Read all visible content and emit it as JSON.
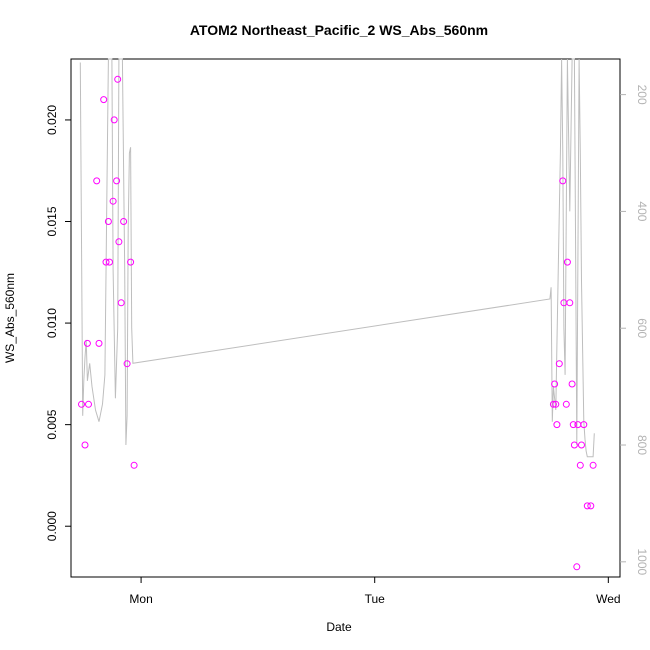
{
  "chart_data": {
    "type": "scatter",
    "title": "ATOM2 Northeast_Pacific_2 WS_Abs_560nm",
    "xlabel": "Date",
    "ylabel": "WS_Abs_560nm",
    "x_ticks": [
      "Mon",
      "Tue",
      "Wed"
    ],
    "x_tick_positions_days": [
      0,
      1,
      2
    ],
    "xlim_days": [
      -0.3,
      2.05
    ],
    "ylim": [
      -0.0025,
      0.023
    ],
    "y_ticks": [
      0.0,
      0.005,
      0.01,
      0.015,
      0.02
    ],
    "y_tick_labels": [
      "0.000",
      "0.005",
      "0.010",
      "0.015",
      "0.020"
    ],
    "right_axis": {
      "ticks": [
        200,
        400,
        600,
        800,
        1000
      ],
      "tick_labels": [
        "200",
        "400",
        "600",
        "800",
        "1000"
      ],
      "lim": [
        1026,
        139
      ],
      "reversed": true
    },
    "grid": false,
    "colors": {
      "points": "#ff00ff",
      "line": "#bebebe",
      "axes": "#000000",
      "right_axis": "#b3b3b3"
    },
    "series": [
      {
        "type": "scatter",
        "points": [
          [
            -0.255,
            0.006
          ],
          [
            -0.24,
            0.004
          ],
          [
            -0.23,
            0.009
          ],
          [
            -0.225,
            0.006
          ],
          [
            -0.19,
            0.017
          ],
          [
            -0.18,
            0.009
          ],
          [
            -0.16,
            0.021
          ],
          [
            -0.15,
            0.013
          ],
          [
            -0.14,
            0.015
          ],
          [
            -0.135,
            0.013
          ],
          [
            -0.12,
            0.016
          ],
          [
            -0.115,
            0.02
          ],
          [
            -0.105,
            0.017
          ],
          [
            -0.1,
            0.022
          ],
          [
            -0.095,
            0.014
          ],
          [
            -0.085,
            0.011
          ],
          [
            -0.075,
            0.015
          ],
          [
            -0.06,
            0.008
          ],
          [
            -0.045,
            0.013
          ],
          [
            -0.03,
            0.003
          ],
          [
            1.765,
            0.006
          ],
          [
            1.77,
            0.007
          ],
          [
            1.775,
            0.006
          ],
          [
            1.78,
            0.005
          ],
          [
            1.79,
            0.008
          ],
          [
            1.805,
            0.017
          ],
          [
            1.81,
            0.011
          ],
          [
            1.82,
            0.006
          ],
          [
            1.825,
            0.013
          ],
          [
            1.835,
            0.011
          ],
          [
            1.845,
            0.007
          ],
          [
            1.85,
            0.005
          ],
          [
            1.855,
            0.004
          ],
          [
            1.865,
            -0.002
          ],
          [
            1.87,
            0.005
          ],
          [
            1.88,
            0.003
          ],
          [
            1.885,
            0.004
          ],
          [
            1.895,
            0.005
          ],
          [
            1.91,
            0.001
          ],
          [
            1.925,
            0.001
          ],
          [
            1.935,
            0.003
          ]
        ]
      },
      {
        "type": "line",
        "points": [
          [
            -0.26,
            145
          ],
          [
            -0.255,
            450
          ],
          [
            -0.25,
            750
          ],
          [
            -0.245,
            690
          ],
          [
            -0.24,
            650
          ],
          [
            -0.235,
            620
          ],
          [
            -0.23,
            690
          ],
          [
            -0.22,
            660
          ],
          [
            -0.21,
            700
          ],
          [
            -0.195,
            740
          ],
          [
            -0.18,
            760
          ],
          [
            -0.165,
            730
          ],
          [
            -0.155,
            680
          ],
          [
            -0.145,
            320
          ],
          [
            -0.14,
            139
          ],
          [
            -0.125,
            139
          ],
          [
            -0.12,
            500
          ],
          [
            -0.11,
            720
          ],
          [
            -0.1,
            600
          ],
          [
            -0.095,
            139
          ],
          [
            -0.08,
            139
          ],
          [
            -0.07,
            500
          ],
          [
            -0.065,
            800
          ],
          [
            -0.06,
            750
          ],
          [
            -0.055,
            430
          ],
          [
            -0.05,
            300
          ],
          [
            -0.045,
            290
          ],
          [
            -0.04,
            600
          ],
          [
            -0.035,
            660
          ],
          [
            1.75,
            550
          ],
          [
            1.755,
            530
          ],
          [
            1.76,
            760
          ],
          [
            1.765,
            700
          ],
          [
            1.775,
            740
          ],
          [
            1.78,
            630
          ],
          [
            1.79,
            400
          ],
          [
            1.795,
            300
          ],
          [
            1.8,
            139
          ],
          [
            1.805,
            300
          ],
          [
            1.81,
            600
          ],
          [
            1.815,
            680
          ],
          [
            1.825,
            139
          ],
          [
            1.835,
            400
          ],
          [
            1.845,
            139
          ],
          [
            1.855,
            139
          ],
          [
            1.86,
            460
          ],
          [
            1.865,
            800
          ],
          [
            1.875,
            139
          ],
          [
            1.88,
            300
          ],
          [
            1.885,
            520
          ],
          [
            1.895,
            760
          ],
          [
            1.9,
            790
          ],
          [
            1.905,
            810
          ],
          [
            1.91,
            820
          ],
          [
            1.915,
            820
          ],
          [
            1.935,
            820
          ],
          [
            1.94,
            780
          ]
        ]
      }
    ]
  }
}
